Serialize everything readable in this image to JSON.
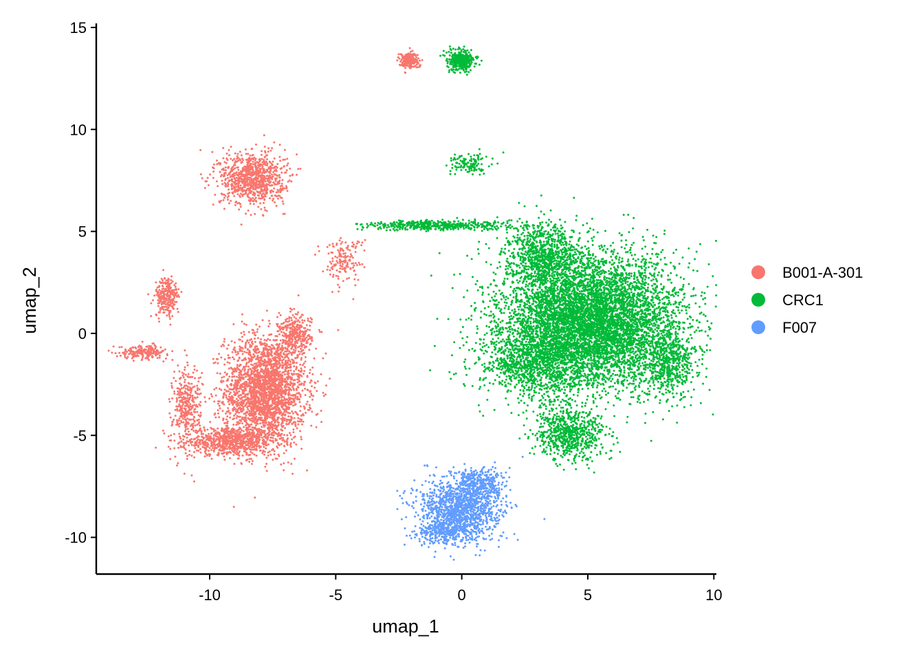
{
  "chart_data": {
    "type": "scatter",
    "xlabel": "umap_1",
    "ylabel": "umap_2",
    "xlim": [
      -14.5,
      10.1
    ],
    "ylim": [
      -11.8,
      15.2
    ],
    "x_ticks": [
      -10,
      -5,
      0,
      5,
      10
    ],
    "y_ticks": [
      -10,
      -5,
      0,
      5,
      10,
      15
    ],
    "x_tick_labels": [
      "-10",
      "-5",
      "0",
      "5",
      "10"
    ],
    "y_tick_labels": [
      "-10",
      "-5",
      "0",
      "5",
      "10",
      "15"
    ],
    "grid": false,
    "legend_position": "right",
    "series": [
      {
        "name": "B001-A-301",
        "color": "#F8766D",
        "clusters": [
          {
            "cx": -7.8,
            "cy": -2.8,
            "sx": 1.0,
            "sy": 1.7,
            "n": 2600
          },
          {
            "cx": -9.2,
            "cy": -5.3,
            "sx": 1.1,
            "sy": 0.4,
            "n": 700
          },
          {
            "cx": -10.9,
            "cy": -3.6,
            "sx": 0.35,
            "sy": 1.3,
            "n": 350
          },
          {
            "cx": -6.6,
            "cy": -0.1,
            "sx": 0.4,
            "sy": 0.6,
            "n": 300
          },
          {
            "cx": -11.7,
            "cy": 1.8,
            "sx": 0.3,
            "sy": 0.6,
            "n": 250
          },
          {
            "cx": -12.6,
            "cy": -0.9,
            "sx": 0.6,
            "sy": 0.2,
            "n": 200
          },
          {
            "cx": -8.3,
            "cy": 7.6,
            "sx": 0.8,
            "sy": 0.8,
            "n": 900
          },
          {
            "cx": -2.1,
            "cy": 13.4,
            "sx": 0.25,
            "sy": 0.25,
            "n": 200
          },
          {
            "cx": -4.7,
            "cy": 3.6,
            "sx": 0.5,
            "sy": 0.7,
            "n": 150
          }
        ]
      },
      {
        "name": "CRC1",
        "color": "#00BA38",
        "clusters": [
          {
            "cx": 5.2,
            "cy": 0.6,
            "sx": 2.2,
            "sy": 2.0,
            "n": 6500
          },
          {
            "cx": 2.9,
            "cy": -1.5,
            "sx": 1.4,
            "sy": 1.1,
            "n": 1000
          },
          {
            "cx": 4.3,
            "cy": -4.9,
            "sx": 0.9,
            "sy": 0.8,
            "n": 700
          },
          {
            "cx": 3.2,
            "cy": 3.8,
            "sx": 0.9,
            "sy": 1.0,
            "n": 900
          },
          {
            "cx": -1.0,
            "cy": 5.3,
            "sx": 1.8,
            "sy": 0.15,
            "n": 450
          },
          {
            "cx": 0.0,
            "cy": 13.4,
            "sx": 0.35,
            "sy": 0.3,
            "n": 350
          },
          {
            "cx": 0.3,
            "cy": 8.3,
            "sx": 0.5,
            "sy": 0.3,
            "n": 120
          },
          {
            "cx": 8.2,
            "cy": -1.5,
            "sx": 0.6,
            "sy": 1.0,
            "n": 500
          }
        ]
      },
      {
        "name": "F007",
        "color": "#619CFF",
        "clusters": [
          {
            "cx": -0.1,
            "cy": -8.6,
            "sx": 1.0,
            "sy": 1.0,
            "n": 1300
          },
          {
            "cx": 0.8,
            "cy": -7.4,
            "sx": 0.6,
            "sy": 0.5,
            "n": 300
          },
          {
            "cx": -0.8,
            "cy": -9.8,
            "sx": 0.6,
            "sy": 0.4,
            "n": 250
          }
        ]
      }
    ]
  }
}
